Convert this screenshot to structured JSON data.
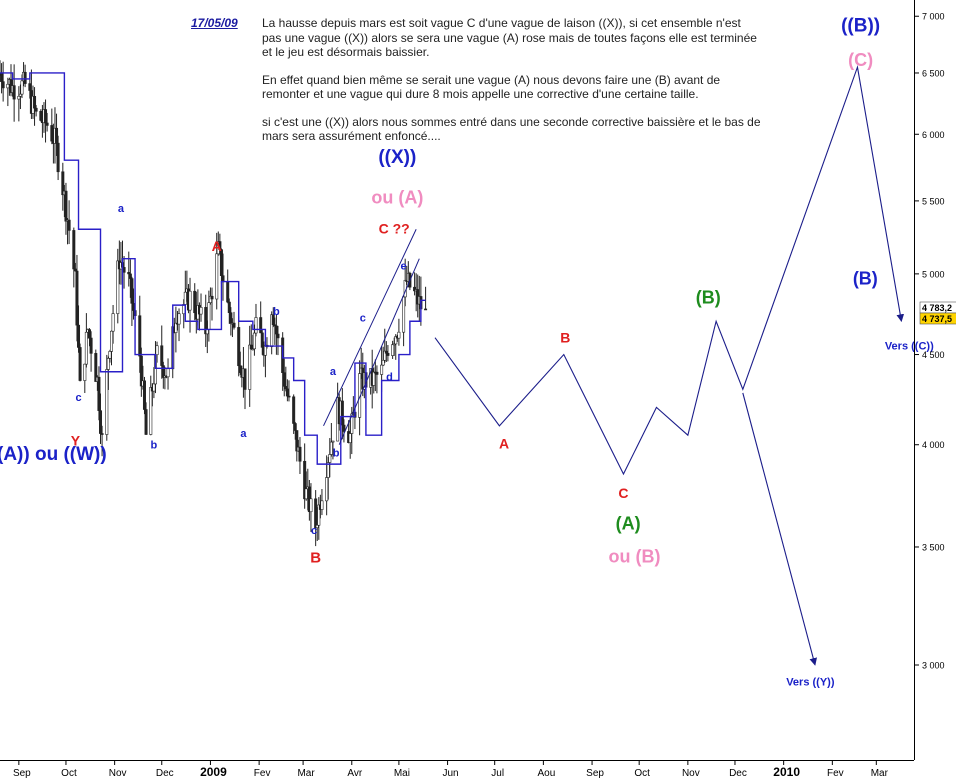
{
  "annotation": {
    "date": "17/05/09",
    "paragraphs": [
      "La hausse depuis mars est soit vague C d'une vague de laison ((X)), si cet ensemble n'est pas une vague ((X)) alors se sera une vague (A) rose mais de toutes façons elle est terminée et le jeu est désormais baissier.",
      "En effet quand bien même se serait une vague (A) nous devons faire une (B) avant de remonter et une vague qui dure 8 mois appelle une corrective d'une certaine taille.",
      "si c'est une ((X)) alors nous sommes entré dans une seconde corrective baissière et le bas de mars sera assurément enfoncé...."
    ]
  },
  "chart_data": {
    "type": "candlestick",
    "title": "",
    "subtitle": "",
    "xlabel": "",
    "ylabel": "",
    "y_scale": "log",
    "ylim": [
      2650,
      7150
    ],
    "xlim": [
      "2008-08-20",
      "2010-03-25"
    ],
    "y_ticks": [
      3000,
      3500,
      4000,
      4500,
      5000,
      5500,
      6000,
      6500,
      7000
    ],
    "y_tick_labels": [
      "3 000",
      "3 500",
      "4 000",
      "4 500",
      "5 000",
      "5 500",
      "6 000",
      "6 500",
      "7 000"
    ],
    "x_ticks": [
      {
        "date": "2008-09-01",
        "label": "Sep"
      },
      {
        "date": "2008-10-01",
        "label": "Oct"
      },
      {
        "date": "2008-11-01",
        "label": "Nov"
      },
      {
        "date": "2008-12-01",
        "label": "Dec"
      },
      {
        "date": "2009-01-01",
        "label": "2009",
        "bold": true
      },
      {
        "date": "2009-02-01",
        "label": "Fev"
      },
      {
        "date": "2009-03-01",
        "label": "Mar"
      },
      {
        "date": "2009-04-01",
        "label": "Avr"
      },
      {
        "date": "2009-05-01",
        "label": "Mai"
      },
      {
        "date": "2009-06-01",
        "label": "Jun"
      },
      {
        "date": "2009-07-01",
        "label": "Jul"
      },
      {
        "date": "2009-08-01",
        "label": "Aou"
      },
      {
        "date": "2009-09-01",
        "label": "Sep"
      },
      {
        "date": "2009-10-01",
        "label": "Oct"
      },
      {
        "date": "2009-11-01",
        "label": "Nov"
      },
      {
        "date": "2009-12-01",
        "label": "Dec"
      },
      {
        "date": "2010-01-01",
        "label": "2010",
        "bold": true
      },
      {
        "date": "2010-02-01",
        "label": "Fev"
      },
      {
        "date": "2010-03-01",
        "label": "Mar"
      }
    ],
    "price_boxes": [
      {
        "label": "4 783,2",
        "value": 4783,
        "color": "#ffffff"
      },
      {
        "label": "4 737,5",
        "value": 4737,
        "color": "#ffd400"
      }
    ],
    "price_path": [
      [
        "2008-08-20",
        6500
      ],
      [
        "2008-08-28",
        6380
      ],
      [
        "2008-09-05",
        6400
      ],
      [
        "2008-09-12",
        6150
      ],
      [
        "2008-09-19",
        6080
      ],
      [
        "2008-09-24",
        5950
      ],
      [
        "2008-09-29",
        5600
      ],
      [
        "2008-10-03",
        5300
      ],
      [
        "2008-10-07",
        4950
      ],
      [
        "2008-10-10",
        4300
      ],
      [
        "2008-10-15",
        4650
      ],
      [
        "2008-10-21",
        4350
      ],
      [
        "2008-10-24",
        4020
      ],
      [
        "2008-10-28",
        4500
      ],
      [
        "2008-11-04",
        5100
      ],
      [
        "2008-11-10",
        4950
      ],
      [
        "2008-11-17",
        4500
      ],
      [
        "2008-11-21",
        4050
      ],
      [
        "2008-11-28",
        4500
      ],
      [
        "2008-12-05",
        4380
      ],
      [
        "2008-12-10",
        4750
      ],
      [
        "2008-12-19",
        4850
      ],
      [
        "2008-12-29",
        4650
      ],
      [
        "2009-01-06",
        5150
      ],
      [
        "2009-01-12",
        4800
      ],
      [
        "2009-01-23",
        4350
      ],
      [
        "2009-01-30",
        4650
      ],
      [
        "2009-02-05",
        4550
      ],
      [
        "2009-02-09",
        4800
      ],
      [
        "2009-02-16",
        4400
      ],
      [
        "2009-02-23",
        4080
      ],
      [
        "2009-03-03",
        3750
      ],
      [
        "2009-03-09",
        3600
      ],
      [
        "2009-03-16",
        3900
      ],
      [
        "2009-03-23",
        4200
      ],
      [
        "2009-03-31",
        4050
      ],
      [
        "2009-04-06",
        4350
      ],
      [
        "2009-04-14",
        4350
      ],
      [
        "2009-04-20",
        4400
      ],
      [
        "2009-04-24",
        4550
      ],
      [
        "2009-04-30",
        4650
      ],
      [
        "2009-05-06",
        4950
      ],
      [
        "2009-05-12",
        4850
      ],
      [
        "2009-05-18",
        4737
      ]
    ],
    "series": [
      {
        "type": "step",
        "points": [
          [
            "2008-08-20",
            6500
          ],
          [
            "2008-08-28",
            6450
          ],
          [
            "2008-09-08",
            6500
          ],
          [
            "2008-09-30",
            5800
          ],
          [
            "2008-10-09",
            5300
          ],
          [
            "2008-10-23",
            4400
          ],
          [
            "2008-11-06",
            5100
          ],
          [
            "2008-11-14",
            4500
          ],
          [
            "2008-11-27",
            4420
          ],
          [
            "2008-12-08",
            4800
          ],
          [
            "2008-12-16",
            4700
          ],
          [
            "2008-12-24",
            4650
          ],
          [
            "2009-01-08",
            4950
          ],
          [
            "2009-01-19",
            4700
          ],
          [
            "2009-01-28",
            4650
          ],
          [
            "2009-02-05",
            4550
          ],
          [
            "2009-02-16",
            4480
          ],
          [
            "2009-02-23",
            4350
          ],
          [
            "2009-03-02",
            4050
          ],
          [
            "2009-03-10",
            3900
          ],
          [
            "2009-03-25",
            4150
          ],
          [
            "2009-04-03",
            4450
          ],
          [
            "2009-04-10",
            4050
          ],
          [
            "2009-04-20",
            4350
          ],
          [
            "2009-05-01",
            4500
          ],
          [
            "2009-05-08",
            4700
          ],
          [
            "2009-05-15",
            4830
          ]
        ]
      },
      {
        "type": "projection",
        "points": [
          [
            "2009-05-24",
            4600
          ],
          [
            "2009-07-04",
            4100
          ],
          [
            "2009-08-14",
            4500
          ],
          [
            "2009-09-21",
            3850
          ],
          [
            "2009-10-12",
            4200
          ],
          [
            "2009-11-01",
            4050
          ],
          [
            "2009-11-19",
            4700
          ],
          [
            "2009-12-06",
            4300
          ],
          [
            "2010-02-17",
            6550
          ],
          [
            "2010-03-17",
            4700
          ]
        ]
      },
      {
        "type": "projection",
        "points": [
          [
            "2009-12-06",
            4280
          ],
          [
            "2010-01-21",
            3000
          ]
        ]
      }
    ],
    "trend_lines": [
      {
        "from": [
          "2009-03-14",
          4100
        ],
        "to": [
          "2009-05-12",
          5300
        ]
      },
      {
        "from": [
          "2009-03-24",
          4000
        ],
        "to": [
          "2009-05-14",
          5100
        ]
      }
    ],
    "labels": [
      {
        "text": "((A)) ou ((W))",
        "date": "2008-09-20",
        "value": 3920,
        "color": "#1b22c8",
        "size": 19
      },
      {
        "text": "Y",
        "date": "2008-10-07",
        "value": 3995,
        "color": "#e02020",
        "size": 14
      },
      {
        "text": "c",
        "date": "2008-10-09",
        "value": 4235,
        "color": "#1b22c8",
        "size": 11
      },
      {
        "text": "a",
        "date": "2008-11-05",
        "value": 5420,
        "color": "#1b22c8",
        "size": 11
      },
      {
        "text": "b",
        "date": "2008-11-26",
        "value": 3980,
        "color": "#1b22c8",
        "size": 11
      },
      {
        "text": "A",
        "date": "2009-01-05",
        "value": 5150,
        "color": "#e02020",
        "size": 14
      },
      {
        "text": "b",
        "date": "2009-02-12",
        "value": 4740,
        "color": "#1b22c8",
        "size": 11
      },
      {
        "text": "a",
        "date": "2009-01-22",
        "value": 4040,
        "color": "#1b22c8",
        "size": 11
      },
      {
        "text": "c",
        "date": "2009-03-08",
        "value": 3560,
        "color": "#1b22c8",
        "size": 11
      },
      {
        "text": "B",
        "date": "2009-03-09",
        "value": 3430,
        "color": "#e02020",
        "size": 15
      },
      {
        "text": "a",
        "date": "2009-03-20",
        "value": 4380,
        "color": "#1b22c8",
        "size": 11
      },
      {
        "text": "b",
        "date": "2009-03-22",
        "value": 3940,
        "color": "#1b22c8",
        "size": 11
      },
      {
        "text": "c",
        "date": "2009-04-08",
        "value": 4700,
        "color": "#1b22c8",
        "size": 11
      },
      {
        "text": "d",
        "date": "2009-04-25",
        "value": 4350,
        "color": "#1b22c8",
        "size": 11
      },
      {
        "text": "e",
        "date": "2009-05-04",
        "value": 5030,
        "color": "#1b22c8",
        "size": 11
      },
      {
        "text": "((X))",
        "date": "2009-04-30",
        "value": 5780,
        "color": "#1b22c8",
        "size": 19
      },
      {
        "text": "ou (A)",
        "date": "2009-04-30",
        "value": 5480,
        "color": "#f08cc0",
        "size": 18
      },
      {
        "text": "C ??",
        "date": "2009-04-28",
        "value": 5270,
        "color": "#e02020",
        "size": 14
      },
      {
        "text": "A",
        "date": "2009-07-07",
        "value": 3980,
        "color": "#e02020",
        "size": 14
      },
      {
        "text": "B",
        "date": "2009-08-15",
        "value": 4570,
        "color": "#e02020",
        "size": 14
      },
      {
        "text": "C",
        "date": "2009-09-21",
        "value": 3730,
        "color": "#e02020",
        "size": 14
      },
      {
        "text": "(A)",
        "date": "2009-09-24",
        "value": 3580,
        "color": "#1e8c1e",
        "size": 18
      },
      {
        "text": "ou (B)",
        "date": "2009-09-28",
        "value": 3430,
        "color": "#f08cc0",
        "size": 18
      },
      {
        "text": "(B)",
        "date": "2009-11-14",
        "value": 4810,
        "color": "#1e8c1e",
        "size": 18
      },
      {
        "text": "((B))",
        "date": "2010-02-19",
        "value": 6860,
        "color": "#1b22c8",
        "size": 19
      },
      {
        "text": "(C)",
        "date": "2010-02-19",
        "value": 6560,
        "color": "#f08cc0",
        "size": 18
      },
      {
        "text": "(B)",
        "date": "2010-02-22",
        "value": 4930,
        "color": "#1b22c8",
        "size": 18
      },
      {
        "text": "Vers ((C))",
        "date": "2010-03-22",
        "value": 4530,
        "color": "#1b22c8",
        "size": 11
      },
      {
        "text": "Vers ((Y))",
        "date": "2010-01-18",
        "value": 2920,
        "color": "#1b22c8",
        "size": 11
      }
    ],
    "grid": false,
    "legend": "none",
    "colors": {
      "candle": "#222222",
      "step": "#2a1fc8",
      "projection": "#1b1d8a",
      "axis": "#000000"
    }
  }
}
